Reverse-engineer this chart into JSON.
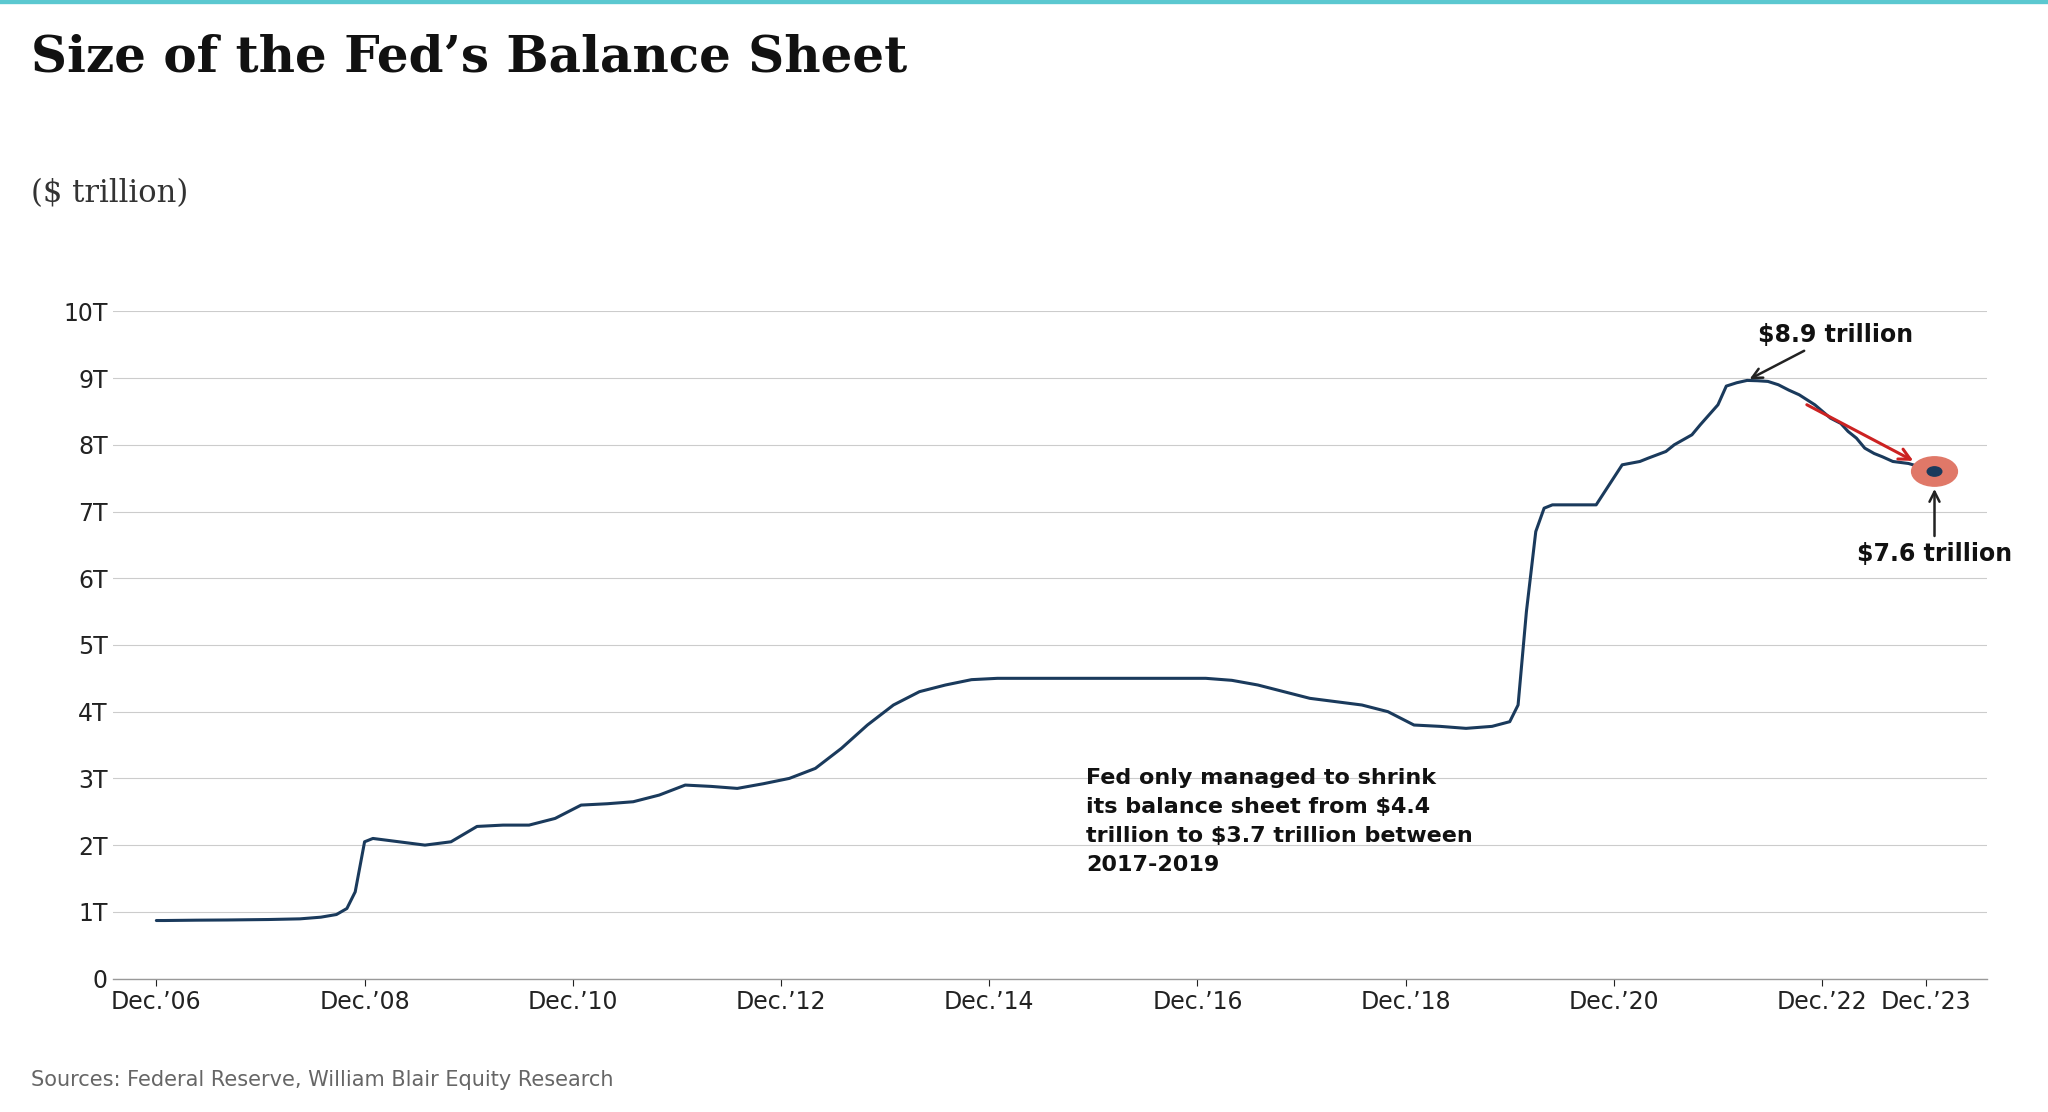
{
  "title": "Size of the Fed’s Balance Sheet",
  "subtitle": "($ trillion)",
  "source": "Sources: Federal Reserve, William Blair Equity Research",
  "line_color": "#1a3a5c",
  "background_color": "#ffffff",
  "top_border_color": "#5bc8d0",
  "ylim": [
    0,
    10
  ],
  "yticks": [
    0,
    1,
    2,
    3,
    4,
    5,
    6,
    7,
    8,
    9,
    10
  ],
  "ytick_labels": [
    "0",
    "1T",
    "2T",
    "3T",
    "4T",
    "5T",
    "6T",
    "7T",
    "8T",
    "9T",
    "10T"
  ],
  "xtick_positions": [
    2006.92,
    2008.92,
    2010.92,
    2012.92,
    2014.92,
    2016.92,
    2018.92,
    2020.92,
    2022.92,
    2023.92
  ],
  "xtick_labels": [
    "Dec.’06",
    "Dec.’08",
    "Dec.’10",
    "Dec.’12",
    "Dec.’14",
    "Dec.’16",
    "Dec.’18",
    "Dec.’20",
    "Dec.’22",
    "Dec.’23"
  ],
  "annotation_peak_label": "$8.9 trillion",
  "annotation_end_label": "$7.6 trillion",
  "annotation_mid_label": "Fed only managed to shrink\nits balance sheet from $4.4\ntrillion to $3.7 trillion between\n2017-2019",
  "dot_color": "#e07868",
  "arrow_color_black": "#333333",
  "arrow_color_red": "#cc2222",
  "xlim": [
    2006.5,
    2024.5
  ],
  "data": [
    [
      2006.92,
      0.87
    ],
    [
      2007.0,
      0.87
    ],
    [
      2007.3,
      0.875
    ],
    [
      2007.6,
      0.878
    ],
    [
      2008.0,
      0.885
    ],
    [
      2008.3,
      0.895
    ],
    [
      2008.5,
      0.92
    ],
    [
      2008.65,
      0.96
    ],
    [
      2008.75,
      1.05
    ],
    [
      2008.83,
      1.3
    ],
    [
      2008.92,
      2.05
    ],
    [
      2009.0,
      2.1
    ],
    [
      2009.1,
      2.08
    ],
    [
      2009.25,
      2.05
    ],
    [
      2009.5,
      2.0
    ],
    [
      2009.75,
      2.05
    ],
    [
      2010.0,
      2.28
    ],
    [
      2010.25,
      2.3
    ],
    [
      2010.5,
      2.3
    ],
    [
      2010.75,
      2.4
    ],
    [
      2011.0,
      2.6
    ],
    [
      2011.25,
      2.62
    ],
    [
      2011.5,
      2.65
    ],
    [
      2011.75,
      2.75
    ],
    [
      2012.0,
      2.9
    ],
    [
      2012.25,
      2.88
    ],
    [
      2012.5,
      2.85
    ],
    [
      2012.75,
      2.92
    ],
    [
      2013.0,
      3.0
    ],
    [
      2013.25,
      3.15
    ],
    [
      2013.5,
      3.45
    ],
    [
      2013.75,
      3.8
    ],
    [
      2014.0,
      4.1
    ],
    [
      2014.25,
      4.3
    ],
    [
      2014.5,
      4.4
    ],
    [
      2014.75,
      4.48
    ],
    [
      2015.0,
      4.5
    ],
    [
      2015.5,
      4.5
    ],
    [
      2016.0,
      4.5
    ],
    [
      2016.5,
      4.5
    ],
    [
      2017.0,
      4.5
    ],
    [
      2017.25,
      4.47
    ],
    [
      2017.5,
      4.4
    ],
    [
      2017.75,
      4.3
    ],
    [
      2018.0,
      4.2
    ],
    [
      2018.25,
      4.15
    ],
    [
      2018.5,
      4.1
    ],
    [
      2018.75,
      4.0
    ],
    [
      2019.0,
      3.8
    ],
    [
      2019.25,
      3.78
    ],
    [
      2019.5,
      3.75
    ],
    [
      2019.75,
      3.78
    ],
    [
      2019.92,
      3.85
    ],
    [
      2020.0,
      4.1
    ],
    [
      2020.08,
      5.5
    ],
    [
      2020.17,
      6.7
    ],
    [
      2020.25,
      7.05
    ],
    [
      2020.33,
      7.1
    ],
    [
      2020.5,
      7.1
    ],
    [
      2020.67,
      7.1
    ],
    [
      2020.75,
      7.1
    ],
    [
      2021.0,
      7.7
    ],
    [
      2021.17,
      7.75
    ],
    [
      2021.25,
      7.8
    ],
    [
      2021.42,
      7.9
    ],
    [
      2021.5,
      8.0
    ],
    [
      2021.67,
      8.15
    ],
    [
      2021.75,
      8.3
    ],
    [
      2021.92,
      8.6
    ],
    [
      2022.0,
      8.88
    ],
    [
      2022.1,
      8.93
    ],
    [
      2022.2,
      8.965
    ],
    [
      2022.3,
      8.96
    ],
    [
      2022.4,
      8.95
    ],
    [
      2022.5,
      8.9
    ],
    [
      2022.6,
      8.82
    ],
    [
      2022.7,
      8.75
    ],
    [
      2022.75,
      8.7
    ],
    [
      2022.85,
      8.6
    ],
    [
      2023.0,
      8.4
    ],
    [
      2023.1,
      8.32
    ],
    [
      2023.17,
      8.2
    ],
    [
      2023.25,
      8.1
    ],
    [
      2023.33,
      7.95
    ],
    [
      2023.42,
      7.87
    ],
    [
      2023.5,
      7.82
    ],
    [
      2023.6,
      7.75
    ],
    [
      2023.75,
      7.72
    ],
    [
      2023.9,
      7.65
    ],
    [
      2024.0,
      7.6
    ]
  ]
}
